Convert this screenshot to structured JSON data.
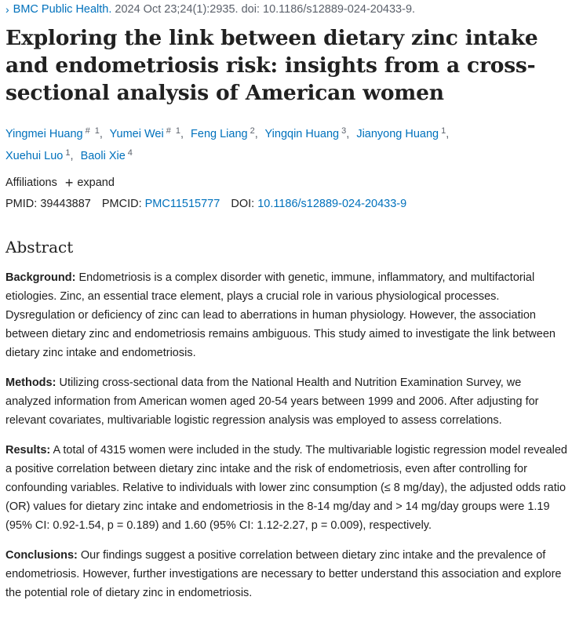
{
  "citation": {
    "journal": "BMC Public Health.",
    "details": "2024 Oct 23;24(1):2935. doi: 10.1186/s12889-024-20433-9."
  },
  "title": "Exploring the link between dietary zinc intake and endometriosis risk: insights from a cross-sectional analysis of American women",
  "authors": [
    {
      "name": "Yingmei Huang",
      "eq": "#",
      "aff": "1"
    },
    {
      "name": "Yumei Wei",
      "eq": "#",
      "aff": "1"
    },
    {
      "name": "Feng Liang",
      "eq": "",
      "aff": "2"
    },
    {
      "name": "Yingqin Huang",
      "eq": "",
      "aff": "3"
    },
    {
      "name": "Jianyong Huang",
      "eq": "",
      "aff": "1"
    },
    {
      "name": "Xuehui Luo",
      "eq": "",
      "aff": "1"
    },
    {
      "name": "Baoli Xie",
      "eq": "",
      "aff": "4"
    }
  ],
  "affiliations": {
    "label": "Affiliations",
    "expand_label": "expand"
  },
  "ids": {
    "pmid_label": "PMID:",
    "pmid": "39443887",
    "pmcid_label": "PMCID:",
    "pmcid": "PMC11515777",
    "doi_label": "DOI:",
    "doi": "10.1186/s12889-024-20433-9"
  },
  "abstract": {
    "heading": "Abstract",
    "sections": [
      {
        "label": "Background:",
        "text": "Endometriosis is a complex disorder with genetic, immune, inflammatory, and multifactorial etiologies. Zinc, an essential trace element, plays a crucial role in various physiological processes. Dysregulation or deficiency of zinc can lead to aberrations in human physiology. However, the association between dietary zinc and endometriosis remains ambiguous. This study aimed to investigate the link between dietary zinc intake and endometriosis."
      },
      {
        "label": "Methods:",
        "text": "Utilizing cross-sectional data from the National Health and Nutrition Examination Survey, we analyzed information from American women aged 20-54 years between 1999 and 2006. After adjusting for relevant covariates, multivariable logistic regression analysis was employed to assess correlations."
      },
      {
        "label": "Results:",
        "text": "A total of 4315 women were included in the study. The multivariable logistic regression model revealed a positive correlation between dietary zinc intake and the risk of endometriosis, even after controlling for confounding variables. Relative to individuals with lower zinc consumption (≤ 8 mg/day), the adjusted odds ratio (OR) values for dietary zinc intake and endometriosis in the 8-14 mg/day and > 14 mg/day groups were 1.19 (95% CI: 0.92-1.54, p = 0.189) and 1.60 (95% CI: 1.12-2.27, p = 0.009), respectively."
      },
      {
        "label": "Conclusions:",
        "text": "Our findings suggest a positive correlation between dietary zinc intake and the prevalence of endometriosis. However, further investigations are necessary to better understand this association and explore the potential role of dietary zinc in endometriosis."
      }
    ]
  }
}
